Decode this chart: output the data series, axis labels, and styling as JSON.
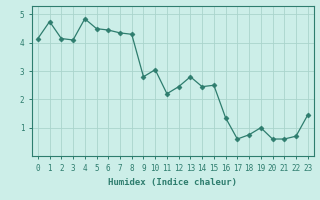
{
  "x": [
    0,
    1,
    2,
    3,
    4,
    5,
    6,
    7,
    8,
    9,
    10,
    11,
    12,
    13,
    14,
    15,
    16,
    17,
    18,
    19,
    20,
    21,
    22,
    23
  ],
  "y": [
    4.15,
    4.75,
    4.15,
    4.1,
    4.85,
    4.5,
    4.45,
    4.35,
    4.3,
    2.8,
    3.05,
    2.2,
    2.45,
    2.8,
    2.45,
    2.5,
    1.35,
    0.6,
    0.75,
    1.0,
    0.6,
    0.6,
    0.7,
    1.45
  ],
  "line_color": "#2e7d6e",
  "marker": "D",
  "marker_size": 2.5,
  "bg_color": "#cceee8",
  "grid_color": "#aad4cc",
  "xlabel": "Humidex (Indice chaleur)",
  "ylabel": "",
  "ylim": [
    0,
    5.3
  ],
  "xlim": [
    -0.5,
    23.5
  ],
  "yticks": [
    1,
    2,
    3,
    4,
    5
  ],
  "xticks": [
    0,
    1,
    2,
    3,
    4,
    5,
    6,
    7,
    8,
    9,
    10,
    11,
    12,
    13,
    14,
    15,
    16,
    17,
    18,
    19,
    20,
    21,
    22,
    23
  ],
  "xlabel_fontsize": 6.5,
  "tick_fontsize": 5.5,
  "line_width": 0.9
}
